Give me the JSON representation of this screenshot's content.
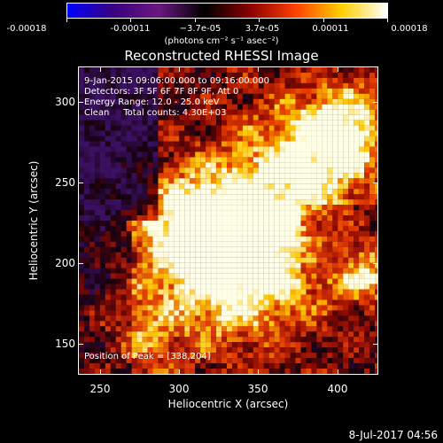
{
  "colorbar": {
    "labels": [
      "-0.00018",
      "-0.00011",
      "−3.7e-05",
      "3.7e-05",
      "0.00011",
      "0.00018"
    ],
    "units": "(photons cm⁻² s⁻¹ asec⁻²)",
    "colors": [
      "#0000ff",
      "#3a0080",
      "#6a1880",
      "#000000",
      "#8b0000",
      "#ff4000",
      "#ffd000",
      "#ffffff"
    ]
  },
  "title": "Reconstructed RHESSI Image",
  "info": {
    "time_range": "9-Jan-2015 09:06:00.000 to 09:16:00.000",
    "detectors": "Detectors: 3F 5F 6F 7F 8F 9F, Att 0",
    "energy": "Energy Range: 12.0 - 25.0 keV",
    "clean": "Clean     Total counts: 4.30E+03"
  },
  "peak": "Position of Peak = [338,204]",
  "axes": {
    "xlabel": "Heliocentric X (arcsec)",
    "ylabel": "Heliocentric Y (arcsec)",
    "xticks": [
      "250",
      "300",
      "350",
      "400"
    ],
    "yticks": [
      "300",
      "250",
      "200",
      "150"
    ]
  },
  "timestamp": "8-Jul-2017 04:56"
}
